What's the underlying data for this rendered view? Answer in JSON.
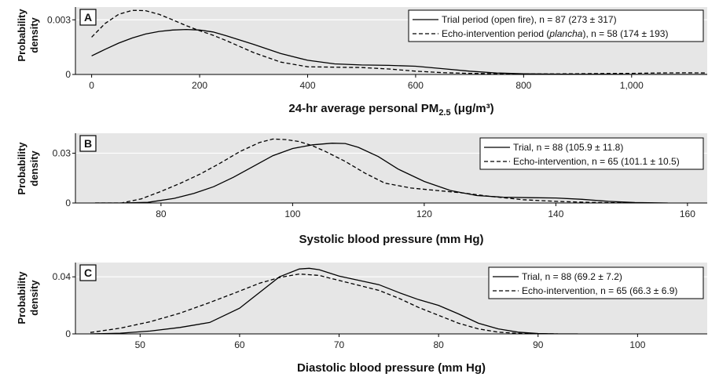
{
  "chart_data": [
    {
      "type": "line",
      "panel_label": "A",
      "ylabel_lines": [
        "Probability",
        "density"
      ],
      "xlabel": "24-hr average personal PM",
      "xlabel_sub": "2.5",
      "xlabel_tail": " (μg/m³)",
      "xlim": [
        -30,
        1140
      ],
      "ylim": [
        0,
        0.0037
      ],
      "xticks": [
        0,
        200,
        400,
        600,
        800,
        1000
      ],
      "xtick_labels": [
        "0",
        "200",
        "400",
        "600",
        "800",
        "1,000"
      ],
      "yticks": [
        0,
        0.003
      ],
      "ytick_labels": [
        "0",
        "0.003"
      ],
      "grid": true,
      "legend_position": "top-right",
      "series": [
        {
          "legend_pre": "Trial period (open fire), ",
          "legend_it": "",
          "legend_post": "n = 87 (273 ± 317)",
          "style": "solid",
          "x": [
            0,
            25,
            50,
            75,
            100,
            125,
            150,
            175,
            200,
            225,
            250,
            300,
            350,
            400,
            450,
            500,
            550,
            600,
            650,
            700,
            750,
            800,
            850,
            900,
            950,
            1000,
            1050,
            1100,
            1140
          ],
          "y": [
            0.00102,
            0.00138,
            0.00172,
            0.002,
            0.00222,
            0.00236,
            0.00244,
            0.00247,
            0.00244,
            0.00233,
            0.00212,
            0.00165,
            0.00115,
            0.00078,
            0.00058,
            0.00052,
            0.0005,
            0.00045,
            0.00032,
            0.00018,
            8e-05,
            4e-05,
            2e-05,
            1e-05,
            1e-05,
            0.0,
            0.0,
            0.0,
            0.0
          ]
        },
        {
          "legend_pre": "Echo-intervention period (",
          "legend_it": "plancha",
          "legend_post": "), n = 58 (174 ± 193)",
          "style": "dashed",
          "x": [
            0,
            25,
            50,
            75,
            100,
            125,
            150,
            175,
            200,
            225,
            250,
            300,
            350,
            400,
            450,
            500,
            550,
            600,
            650,
            700,
            750,
            800,
            850,
            900,
            950,
            1000,
            1050,
            1100,
            1140
          ],
          "y": [
            0.00205,
            0.0028,
            0.0033,
            0.00352,
            0.0035,
            0.0033,
            0.003,
            0.00268,
            0.0024,
            0.00215,
            0.00185,
            0.0012,
            0.00068,
            0.00042,
            0.0004,
            0.00038,
            0.0003,
            0.00018,
            0.0001,
            6e-05,
            4e-05,
            3e-05,
            3e-05,
            4e-05,
            5e-05,
            6e-05,
            8e-05,
            9e-05,
            8e-05
          ]
        }
      ]
    },
    {
      "type": "line",
      "panel_label": "B",
      "ylabel_lines": [
        "Probability",
        "density"
      ],
      "xlabel": "Systolic blood pressure (mm Hg)",
      "xlabel_sub": "",
      "xlabel_tail": "",
      "xlim": [
        67,
        163
      ],
      "ylim": [
        0,
        0.042
      ],
      "xticks": [
        80,
        100,
        120,
        140,
        160
      ],
      "xtick_labels": [
        "80",
        "100",
        "120",
        "140",
        "160"
      ],
      "yticks": [
        0,
        0.03
      ],
      "ytick_labels": [
        "0",
        "0.03"
      ],
      "grid": true,
      "legend_position": "top-right",
      "series": [
        {
          "legend_pre": "Trial, ",
          "legend_it": "",
          "legend_post": "n = 88 (105.9 ± 11.8)",
          "style": "solid",
          "x": [
            70,
            74,
            78,
            82,
            85,
            88,
            91,
            94,
            97,
            100,
            103,
            106,
            108,
            110,
            113,
            116,
            120,
            124,
            128,
            132,
            136,
            140,
            144,
            148,
            152,
            157
          ],
          "y": [
            0.0,
            0.0,
            0.0004,
            0.0028,
            0.0058,
            0.0098,
            0.0155,
            0.022,
            0.0285,
            0.0328,
            0.035,
            0.036,
            0.0358,
            0.0335,
            0.028,
            0.0205,
            0.013,
            0.0075,
            0.0045,
            0.0035,
            0.0032,
            0.003,
            0.0022,
            0.001,
            0.0003,
            0.0
          ]
        },
        {
          "legend_pre": "Echo-intervention, ",
          "legend_it": "",
          "legend_post": "n = 65 (101.1 ± 10.5)",
          "style": "dashed",
          "x": [
            70,
            74,
            77,
            80,
            83,
            86,
            89,
            92,
            95,
            97,
            99,
            101,
            103,
            105,
            108,
            111,
            114,
            118,
            122,
            126,
            130,
            135,
            140,
            145,
            150,
            155
          ],
          "y": [
            0.0,
            0.0,
            0.0025,
            0.007,
            0.012,
            0.0175,
            0.024,
            0.031,
            0.0365,
            0.0385,
            0.0382,
            0.037,
            0.0345,
            0.031,
            0.025,
            0.018,
            0.012,
            0.009,
            0.0075,
            0.006,
            0.004,
            0.002,
            0.001,
            0.0004,
            0.0001,
            0.0
          ]
        }
      ]
    },
    {
      "type": "line",
      "panel_label": "C",
      "ylabel_lines": [
        "Probability",
        "density"
      ],
      "xlabel": "Diastolic blood pressure (mm Hg)",
      "xlabel_sub": "",
      "xlabel_tail": "",
      "xlim": [
        43.5,
        107
      ],
      "ylim": [
        0,
        0.05
      ],
      "xticks": [
        50,
        60,
        70,
        80,
        90,
        100
      ],
      "xtick_labels": [
        "50",
        "60",
        "70",
        "80",
        "90",
        "100"
      ],
      "yticks": [
        0,
        0.04
      ],
      "ytick_labels": [
        "0",
        "0.04"
      ],
      "grid": true,
      "legend_position": "top-right",
      "series": [
        {
          "legend_pre": "Trial, ",
          "legend_it": "",
          "legend_post": "n = 88 (69.2 ± 7.2)",
          "style": "solid",
          "x": [
            45,
            48,
            51,
            54,
            57,
            60,
            62,
            64,
            66,
            67,
            68,
            70,
            72,
            74,
            76,
            78,
            80,
            82,
            84,
            86,
            88,
            90,
            92,
            94
          ],
          "y": [
            0.0,
            0.0005,
            0.002,
            0.0045,
            0.008,
            0.018,
            0.029,
            0.04,
            0.0455,
            0.046,
            0.045,
            0.0405,
            0.0375,
            0.0345,
            0.029,
            0.024,
            0.02,
            0.014,
            0.0075,
            0.0035,
            0.0012,
            0.0003,
            0.0,
            0.0
          ]
        },
        {
          "legend_pre": "Echo-intervention, ",
          "legend_it": "",
          "legend_post": "n = 65 (66.3 ± 6.9)",
          "style": "dashed",
          "x": [
            45,
            48,
            51,
            54,
            57,
            60,
            62,
            64,
            66,
            68,
            70,
            72,
            74,
            76,
            78,
            80,
            82,
            84,
            86,
            88,
            90,
            92
          ],
          "y": [
            0.001,
            0.004,
            0.0085,
            0.0145,
            0.022,
            0.03,
            0.0355,
            0.0395,
            0.042,
            0.041,
            0.0375,
            0.034,
            0.0305,
            0.025,
            0.0185,
            0.013,
            0.0075,
            0.0035,
            0.0012,
            0.0004,
            0.0001,
            0.0
          ]
        }
      ]
    }
  ]
}
